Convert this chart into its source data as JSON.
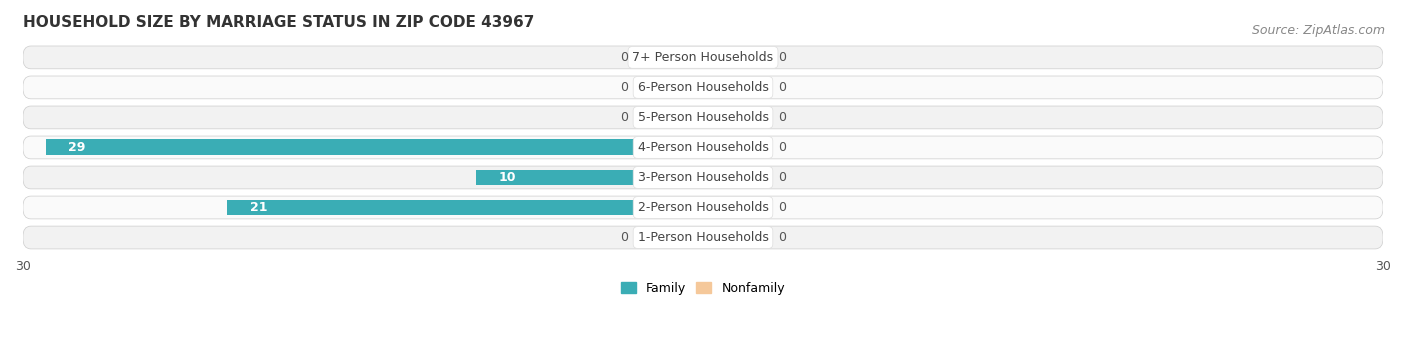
{
  "title": "HOUSEHOLD SIZE BY MARRIAGE STATUS IN ZIP CODE 43967",
  "source": "Source: ZipAtlas.com",
  "categories": [
    "7+ Person Households",
    "6-Person Households",
    "5-Person Households",
    "4-Person Households",
    "3-Person Households",
    "2-Person Households",
    "1-Person Households"
  ],
  "family_values": [
    0,
    0,
    0,
    29,
    10,
    21,
    0
  ],
  "nonfamily_values": [
    0,
    0,
    0,
    0,
    0,
    0,
    0
  ],
  "family_color": "#3AADB5",
  "nonfamily_color": "#F5C89A",
  "family_color_dark": "#2E8E96",
  "bar_bg_color": "#E8E8E8",
  "row_bg_even": "#F2F2F2",
  "row_bg_odd": "#FAFAFA",
  "xlim": 30,
  "stub_size": 2.5,
  "title_fontsize": 11,
  "source_fontsize": 9,
  "label_fontsize": 9,
  "tick_fontsize": 9,
  "legend_fontsize": 9,
  "background_color": "#FFFFFF"
}
